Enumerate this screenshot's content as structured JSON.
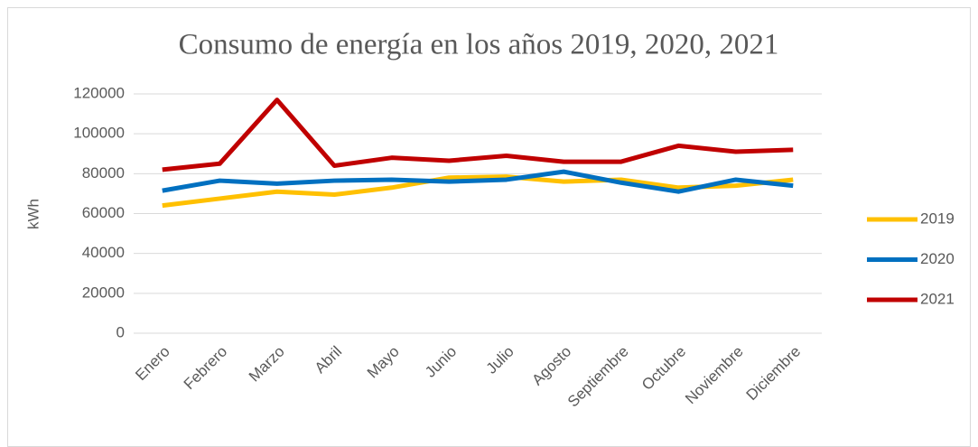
{
  "chart_data": {
    "type": "line",
    "title": "Consumo de energía en los años 2019, 2020, 2021",
    "y_label": "kWh",
    "categories": [
      "Enero",
      "Febrero",
      "Marzo",
      "Abril",
      "Mayo",
      "Junio",
      "Julio",
      "Agosto",
      "Septiembre",
      "Octubre",
      "Noviembre",
      "Diciembre"
    ],
    "series": [
      {
        "name": "2019",
        "color": "#ffc000",
        "values": [
          64000,
          67500,
          71000,
          69500,
          73000,
          78000,
          78500,
          76000,
          77000,
          73000,
          74000,
          77000
        ]
      },
      {
        "name": "2020",
        "color": "#0070c0",
        "values": [
          71500,
          76500,
          75000,
          76500,
          77000,
          76000,
          77000,
          81000,
          75500,
          71000,
          77000,
          74000
        ]
      },
      {
        "name": "2021",
        "color": "#c00000",
        "values": [
          82000,
          85000,
          117000,
          84000,
          88000,
          86500,
          89000,
          86000,
          86000,
          94000,
          91000,
          92000
        ]
      }
    ],
    "ylim": [
      0,
      120000
    ],
    "yticks": [
      0,
      20000,
      40000,
      60000,
      80000,
      100000,
      120000
    ],
    "grid": true,
    "legend": "right"
  }
}
